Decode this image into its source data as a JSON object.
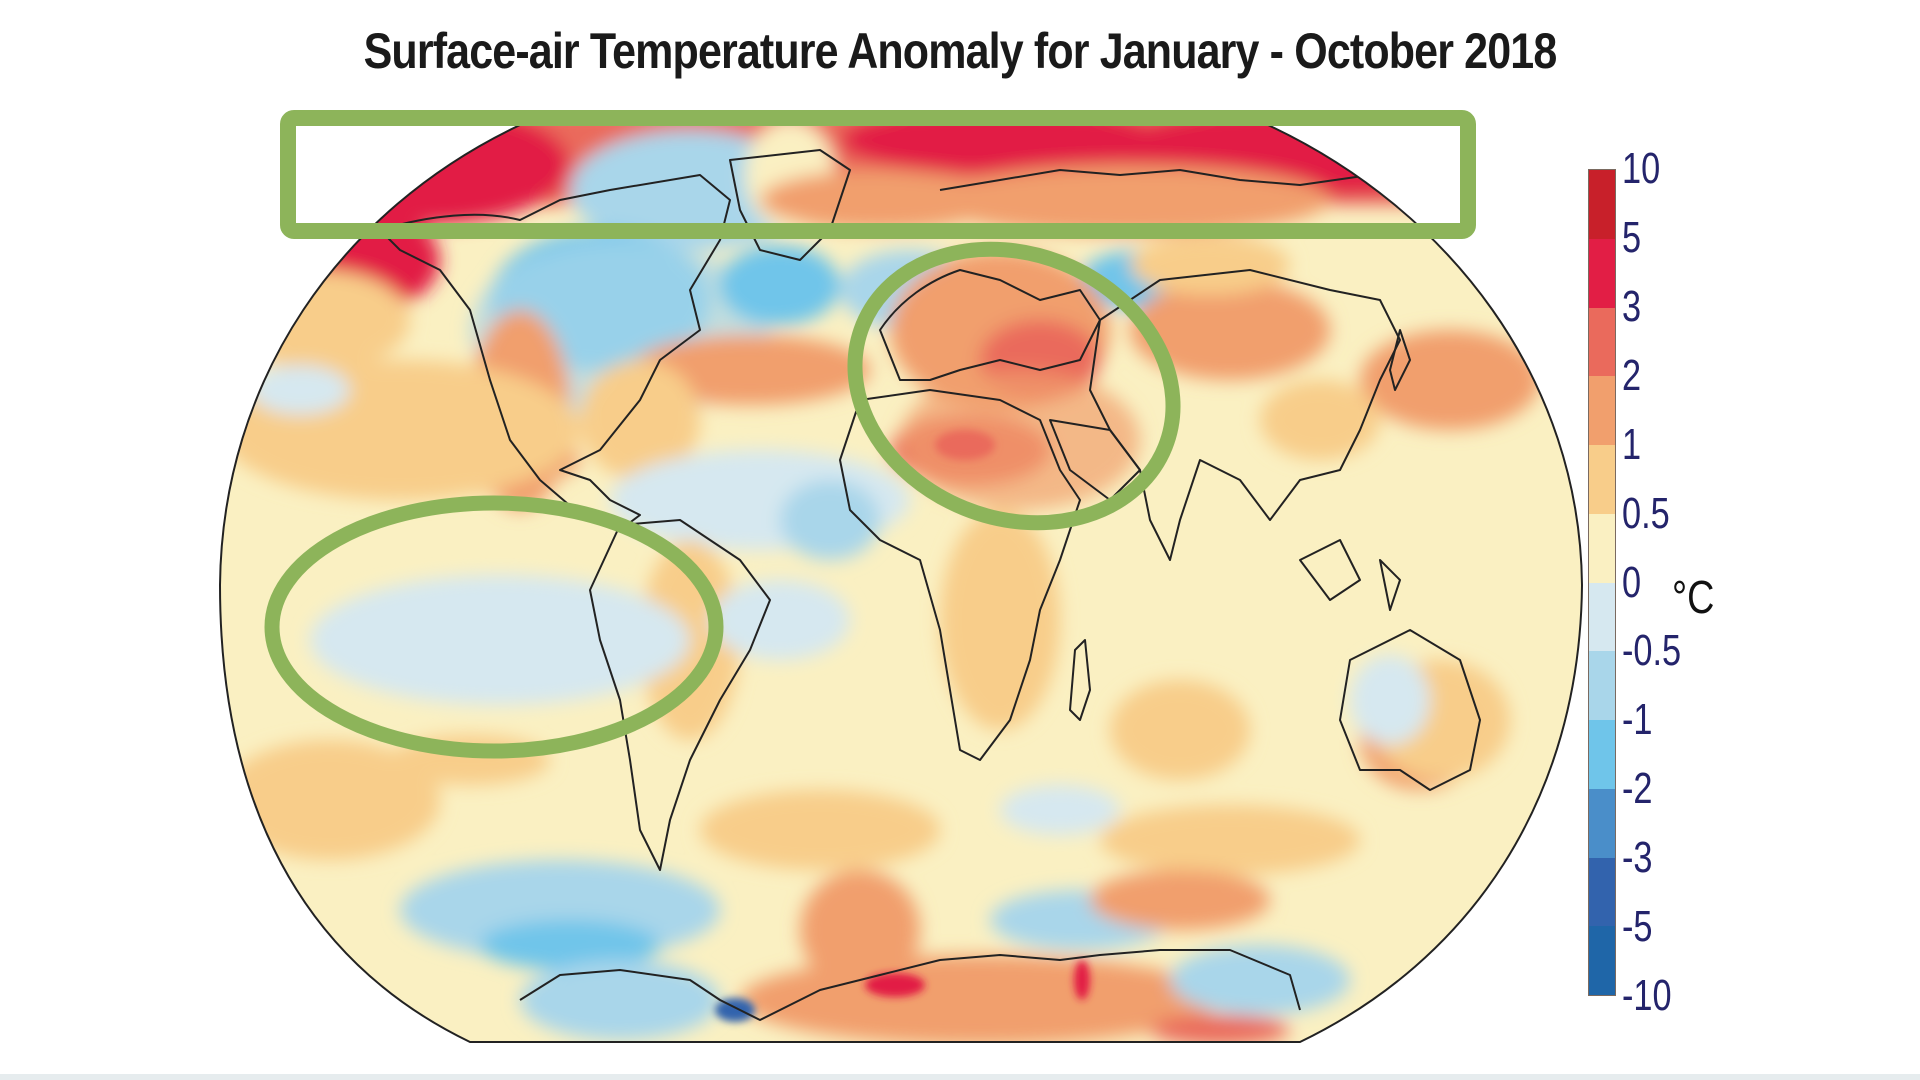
{
  "title": "Surface-air Temperature Anomaly for January - October 2018",
  "colorbar": {
    "unit": "°C",
    "labels": [
      "10",
      "5",
      "3",
      "2",
      "1",
      "0.5",
      "0",
      "-0.5",
      "-1",
      "-2",
      "-3",
      "-5",
      "-10"
    ],
    "colors": [
      "#c8202a",
      "#e21e45",
      "#ea6a5c",
      "#f19f6d",
      "#f8cd8a",
      "#faf0c2",
      "#d6e8f0",
      "#a9d6ea",
      "#6fc5ea",
      "#4a8ec9",
      "#3263ad",
      "#1f66a8"
    ]
  },
  "map": {
    "projection": "Robinson-like",
    "background_color": "#faf0c2",
    "highlights": [
      {
        "shape": "rectangle",
        "region": "Arctic / high northern latitudes",
        "color": "#8db45a"
      },
      {
        "shape": "ellipse",
        "region": "Europe, North Africa, Middle East",
        "color": "#8db45a"
      },
      {
        "shape": "ellipse",
        "region": "Eastern tropical Pacific",
        "color": "#8db45a"
      }
    ]
  },
  "chart_data": {
    "type": "heatmap",
    "title": "Surface-air Temperature Anomaly for January - October 2018",
    "xlabel": "",
    "ylabel": "",
    "colorbar_label": "°C",
    "colorbar_ticks": [
      10,
      5,
      3,
      2,
      1,
      0.5,
      0,
      -0.5,
      -1,
      -2,
      -3,
      -5,
      -10
    ],
    "regions": [
      {
        "name": "Arctic",
        "anomaly_range": [
          3,
          10
        ]
      },
      {
        "name": "Northern Canada / Greenland west",
        "anomaly_range": [
          -2,
          0
        ]
      },
      {
        "name": "Europe",
        "anomaly_range": [
          1,
          3
        ]
      },
      {
        "name": "North Africa / Middle East",
        "anomaly_range": [
          1,
          3
        ]
      },
      {
        "name": "Eastern tropical Pacific",
        "anomaly_range": [
          -0.5,
          0
        ]
      },
      {
        "name": "Siberia / Russia north",
        "anomaly_range": [
          2,
          5
        ]
      },
      {
        "name": "Southern Ocean (Pacific sector)",
        "anomaly_range": [
          -2,
          -0.5
        ]
      },
      {
        "name": "Antarctica (East)",
        "anomaly_range": [
          1,
          3
        ]
      },
      {
        "name": "Australia interior",
        "anomaly_range": [
          1,
          2
        ]
      }
    ],
    "annotations": [
      "Green rectangle: Arctic band",
      "Green ellipse: Europe/Middle East warm anomaly",
      "Green ellipse: Eastern Pacific cool anomaly"
    ]
  }
}
